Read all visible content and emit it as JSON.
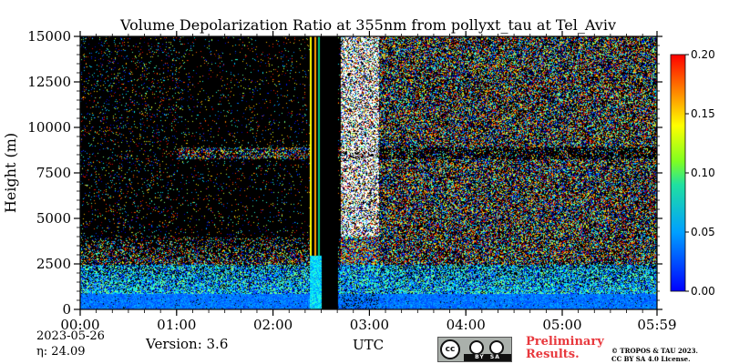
{
  "chart_data": {
    "type": "heatmap",
    "title": "Volume Depolarization Ratio at 355nm from pollyxt_tau at Tel_Aviv",
    "xlabel": "UTC",
    "ylabel": "Height (m)",
    "x_range_hours": [
      0,
      5.983
    ],
    "ylim": [
      0,
      15000
    ],
    "x_ticks": [
      {
        "value": 0,
        "label": "00:00"
      },
      {
        "value": 1,
        "label": "01:00"
      },
      {
        "value": 2,
        "label": "02:00"
      },
      {
        "value": 3,
        "label": "03:00"
      },
      {
        "value": 4,
        "label": "04:00"
      },
      {
        "value": 5,
        "label": "05:00"
      },
      {
        "value": 5.983,
        "label": "05:59"
      }
    ],
    "y_ticks": [
      {
        "value": 0,
        "label": "0"
      },
      {
        "value": 2500,
        "label": "2500"
      },
      {
        "value": 5000,
        "label": "5000"
      },
      {
        "value": 7500,
        "label": "7500"
      },
      {
        "value": 10000,
        "label": "10000"
      },
      {
        "value": 12500,
        "label": "12500"
      },
      {
        "value": 15000,
        "label": "15000"
      }
    ],
    "colorbar": {
      "colormap": "jet",
      "range": [
        0,
        0.2
      ],
      "ticks": [
        {
          "value": 0.0,
          "label": "0.00"
        },
        {
          "value": 0.05,
          "label": "0.05"
        },
        {
          "value": 0.1,
          "label": "0.10"
        },
        {
          "value": 0.15,
          "label": "0.15"
        },
        {
          "value": 0.2,
          "label": "0.20"
        }
      ]
    },
    "features": {
      "gap_hours": [
        2.5,
        2.67
      ],
      "layer_height_m": 8600,
      "noise_start_hours": 2.7
    }
  },
  "footer": {
    "date": "2023-05-26",
    "eta": "η:  24.09",
    "version": "Version: 3.6",
    "preliminary_line1": "Preliminary",
    "preliminary_line2": "Results.",
    "license_line1": "© TROPOS & TAU 2023.",
    "license_line2": "CC BY SA 4.0 License."
  },
  "colors": {
    "background": "#000000",
    "preliminary": "#e8383d"
  }
}
